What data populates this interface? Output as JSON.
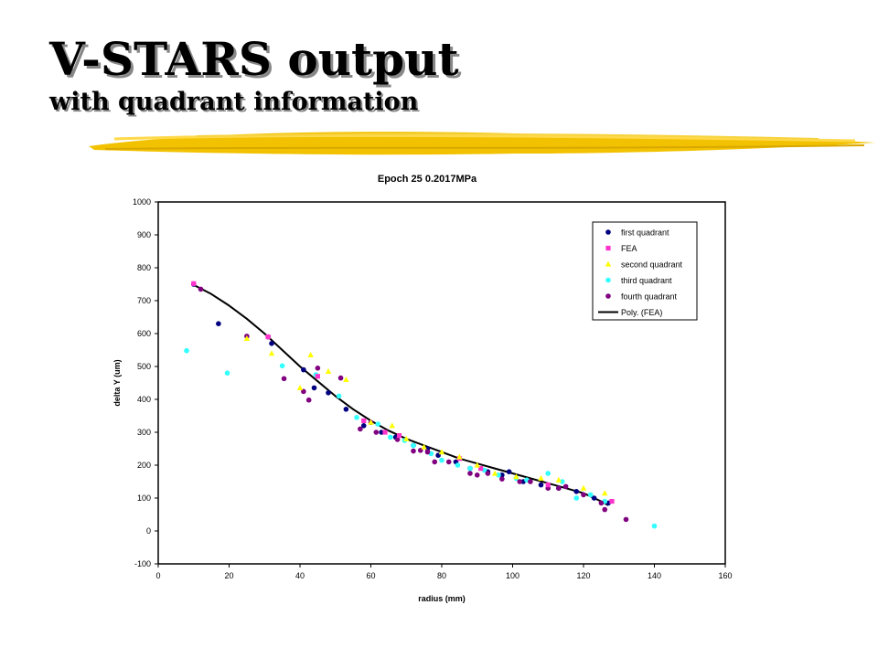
{
  "slide": {
    "title_line1": "V-STARS output",
    "title_line2": "with quadrant information",
    "accent_color": "#f2c200"
  },
  "chart_data": {
    "type": "scatter",
    "title": "Epoch 25 0.2017MPa",
    "xlabel": "radius (mm)",
    "ylabel": "delta Y (um)",
    "xlim": [
      0,
      160
    ],
    "ylim": [
      -100,
      1000
    ],
    "x_ticks": [
      0,
      20,
      40,
      60,
      80,
      100,
      120,
      140,
      160
    ],
    "y_ticks": [
      -100,
      0,
      100,
      200,
      300,
      400,
      500,
      600,
      700,
      800,
      900,
      1000
    ],
    "x_tick_labels": [
      "0",
      "20",
      "40",
      "60",
      "80",
      "100",
      "120",
      "140",
      "160"
    ],
    "y_tick_labels": [
      "-100",
      "0",
      "100",
      "200",
      "300",
      "400",
      "500",
      "600",
      "700",
      "800",
      "900",
      "1000"
    ],
    "grid": false,
    "legend_position": "top-right",
    "series": [
      {
        "name": "first quadrant",
        "marker": "circle",
        "color": "#000080",
        "x": [
          10,
          17,
          32,
          41,
          44,
          48,
          53,
          58,
          63,
          67,
          72,
          76,
          79,
          84,
          88,
          93,
          97,
          99,
          103,
          108,
          113,
          118,
          123,
          127
        ],
        "y": [
          750,
          630,
          570,
          490,
          435,
          420,
          370,
          320,
          300,
          285,
          260,
          250,
          230,
          210,
          190,
          180,
          170,
          180,
          150,
          140,
          130,
          120,
          100,
          85
        ]
      },
      {
        "name": "FEA",
        "marker": "square",
        "color": "#ff33cc",
        "x": [
          10,
          31,
          45,
          58,
          64,
          68,
          85,
          91,
          110,
          128
        ],
        "y": [
          752,
          590,
          470,
          335,
          300,
          290,
          220,
          190,
          140,
          90
        ]
      },
      {
        "name": "second quadrant",
        "marker": "triangle",
        "color": "#ffff00",
        "x": [
          25,
          32,
          40,
          43,
          48,
          53,
          60,
          66,
          70,
          75,
          80,
          85,
          90,
          95,
          101,
          108,
          113,
          120,
          126
        ],
        "y": [
          585,
          540,
          435,
          535,
          485,
          460,
          330,
          320,
          280,
          255,
          240,
          225,
          200,
          175,
          165,
          160,
          155,
          130,
          115
        ]
      },
      {
        "name": "third quadrant",
        "marker": "circle",
        "color": "#33ffff",
        "x": [
          8,
          19.5,
          35,
          44.5,
          51,
          56,
          62,
          65.5,
          69.5,
          72,
          77,
          80,
          84.5,
          88,
          92,
          96,
          101,
          104,
          110,
          114,
          118,
          122,
          126,
          140
        ],
        "y": [
          548,
          480,
          502,
          475,
          410,
          345,
          325,
          285,
          275,
          260,
          235,
          215,
          200,
          190,
          185,
          170,
          160,
          155,
          175,
          150,
          100,
          110,
          90,
          15
        ]
      },
      {
        "name": "fourth quadrant",
        "marker": "circle",
        "color": "#800080",
        "x": [
          12,
          25,
          31,
          35.5,
          41,
          42.5,
          45,
          51.5,
          57,
          60,
          61.5,
          67.5,
          72,
          74,
          76,
          78,
          82,
          88,
          90,
          93,
          97,
          102,
          105,
          110,
          113,
          115,
          120,
          125,
          126,
          132
        ],
        "y": [
          735,
          592,
          590,
          463,
          424,
          398,
          495,
          465,
          310,
          330,
          300,
          278,
          243,
          245,
          240,
          210,
          210,
          175,
          170,
          175,
          158,
          150,
          150,
          130,
          130,
          135,
          110,
          85,
          65,
          35
        ]
      },
      {
        "name": "Poly. (FEA)",
        "marker": "line",
        "color": "#000000",
        "x": [
          10,
          15,
          20,
          25,
          30,
          35,
          40,
          45,
          50,
          55,
          60,
          65,
          70,
          75,
          80,
          85,
          90,
          95,
          100,
          105,
          110,
          115,
          120,
          125,
          127
        ],
        "y": [
          748,
          720,
          685,
          645,
          600,
          550,
          500,
          455,
          410,
          370,
          335,
          305,
          280,
          260,
          240,
          220,
          205,
          190,
          175,
          160,
          145,
          130,
          115,
          90,
          78
        ]
      }
    ]
  }
}
